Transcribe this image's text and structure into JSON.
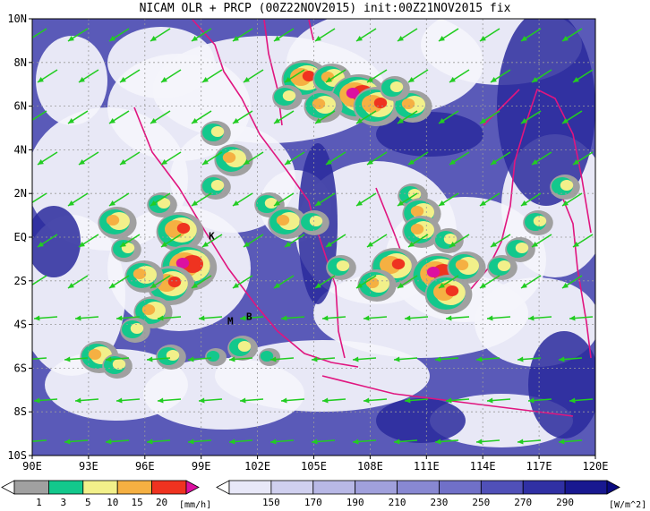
{
  "title": "NICAM OLR + PRCP (00Z22NOV2015) init:00Z21NOV2015 fix",
  "map": {
    "lon_range": [
      90,
      120
    ],
    "lat_range": [
      -10,
      10
    ],
    "lon_ticks": [
      "90E",
      "93E",
      "96E",
      "99E",
      "102E",
      "105E",
      "108E",
      "111E",
      "114E",
      "117E",
      "120E"
    ],
    "lat_ticks": [
      "10N",
      "8N",
      "6N",
      "4N",
      "2N",
      "EQ",
      "2S",
      "4S",
      "6S",
      "8S",
      "10S"
    ],
    "station_labels": [
      {
        "text": "K",
        "lon": 99.4,
        "lat": -0.1
      },
      {
        "text": "M",
        "lon": 100.4,
        "lat": -4.0
      },
      {
        "text": "B",
        "lon": 101.4,
        "lat": -3.8
      }
    ]
  },
  "precip_legend": {
    "labels": [
      "1",
      "3",
      "5",
      "10",
      "15",
      "20"
    ],
    "unit": "[mm/h]",
    "colors": [
      "#ffffff",
      "#a0a0a0",
      "#13c88c",
      "#f2f08a",
      "#f5b042",
      "#ef3320",
      "#dc10a0"
    ]
  },
  "olr_legend": {
    "labels": [
      "150",
      "170",
      "190",
      "210",
      "230",
      "250",
      "270",
      "290"
    ],
    "unit": "[W/m^2]",
    "colors": [
      "#ffffff",
      "#e8e8f8",
      "#d0d0ef",
      "#b8b8e6",
      "#a0a0dc",
      "#8888d2",
      "#7070c8",
      "#5050b8",
      "#3030a4",
      "#181890",
      "#0a0a80"
    ]
  },
  "colors": {
    "wind_vector": "#22cc22",
    "coastline": "#e0157f",
    "deep_convection": "#2a2a9c",
    "clear_sky": "#ffffff"
  }
}
